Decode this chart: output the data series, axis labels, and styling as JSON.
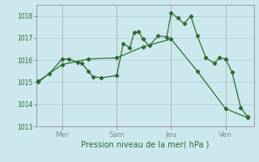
{
  "background_color": "#cce8ee",
  "grid_color": "#aacccc",
  "line_color": "#2d6b2d",
  "marker_color": "#2d6b2d",
  "xlabel": "Pression niveau de la mer( hPa )",
  "ylim": [
    1013,
    1018.5
  ],
  "yticks": [
    1013,
    1014,
    1015,
    1016,
    1017,
    1018
  ],
  "xlim": [
    0,
    1
  ],
  "day_labels": [
    "Mer",
    "Sam",
    "Jeu",
    "Ven"
  ],
  "day_positions": [
    0.12,
    0.37,
    0.62,
    0.87
  ],
  "line1_x": [
    0.01,
    0.06,
    0.12,
    0.15,
    0.19,
    0.21,
    0.24,
    0.26,
    0.3,
    0.37,
    0.4,
    0.43,
    0.45,
    0.47,
    0.49,
    0.52,
    0.56,
    0.6,
    0.62,
    0.65,
    0.68,
    0.71,
    0.74,
    0.78,
    0.82,
    0.84,
    0.87,
    0.9,
    0.94,
    0.97
  ],
  "line1_y": [
    1015.0,
    1015.4,
    1016.05,
    1016.05,
    1015.9,
    1015.85,
    1015.5,
    1015.25,
    1015.2,
    1015.3,
    1016.75,
    1016.55,
    1017.25,
    1017.3,
    1016.95,
    1016.65,
    1017.1,
    1017.05,
    1018.15,
    1017.9,
    1017.65,
    1018.0,
    1017.1,
    1016.1,
    1015.85,
    1016.1,
    1016.05,
    1015.45,
    1013.85,
    1013.45
  ],
  "line2_x": [
    0.01,
    0.12,
    0.24,
    0.37,
    0.49,
    0.62,
    0.74,
    0.87,
    0.97
  ],
  "line2_y": [
    1015.05,
    1015.8,
    1016.05,
    1016.1,
    1016.6,
    1016.95,
    1015.5,
    1013.8,
    1013.4
  ]
}
